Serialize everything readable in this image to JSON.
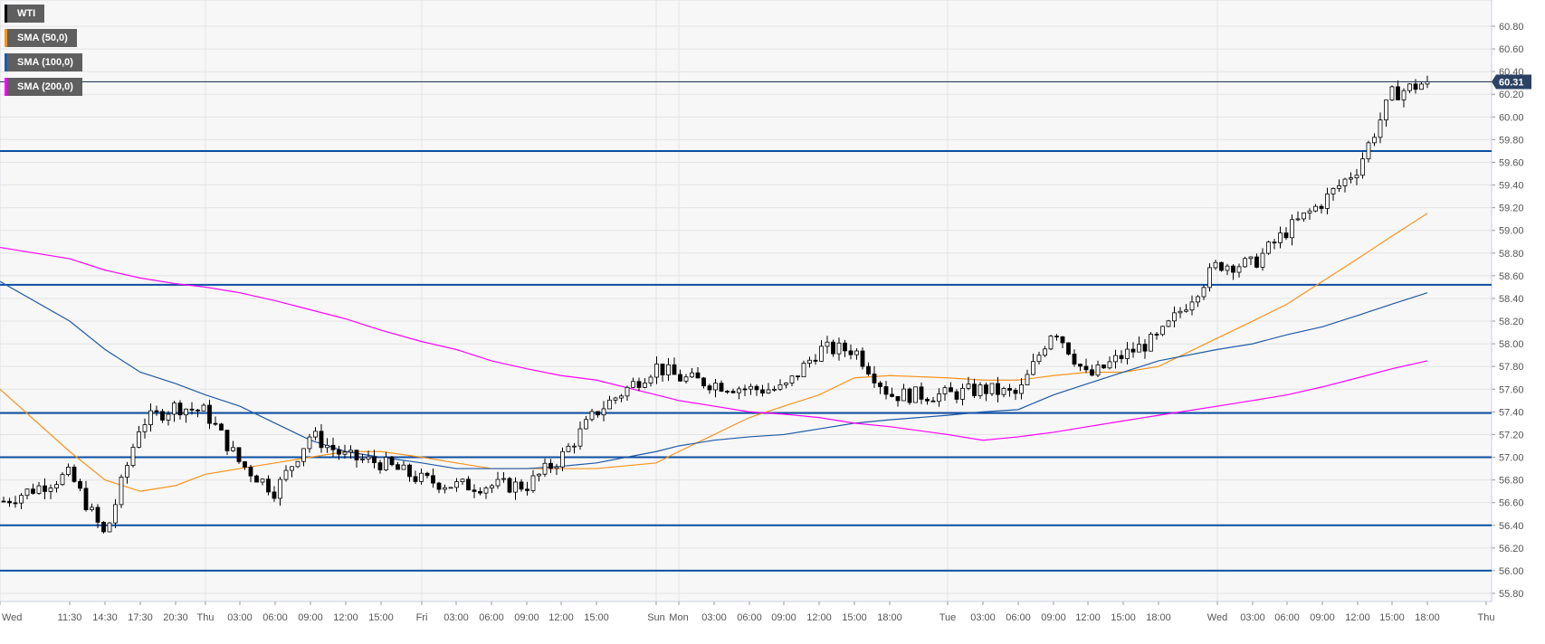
{
  "legend": [
    {
      "label": "WTI",
      "color": "#000000"
    },
    {
      "label": "SMA (50,0)",
      "color": "#f7931e"
    },
    {
      "label": "SMA (100,0)",
      "color": "#1f5aa6"
    },
    {
      "label": "SMA (200,0)",
      "color": "#ff00ff"
    }
  ],
  "chart_data": {
    "type": "candlestick",
    "instrument": "WTI",
    "last_price": "60.31",
    "ylim": [
      55.8,
      60.8
    ],
    "y_ticks": [
      "55.80",
      "56.00",
      "56.20",
      "56.40",
      "56.60",
      "56.80",
      "57.00",
      "57.20",
      "57.40",
      "57.60",
      "57.80",
      "58.00",
      "58.20",
      "58.40",
      "58.60",
      "58.80",
      "59.00",
      "59.20",
      "59.40",
      "59.60",
      "59.80",
      "60.00",
      "60.20",
      "60.40",
      "60.60",
      "60.80"
    ],
    "x_ticks": [
      "Wed",
      "11:30",
      "14:30",
      "17:30",
      "20:30",
      "Thu",
      "03:00",
      "06:00",
      "09:00",
      "12:00",
      "15:00",
      "Fri",
      "03:00",
      "06:00",
      "09:00",
      "12:00",
      "15:00",
      "Sun",
      "Mon",
      "03:00",
      "06:00",
      "09:00",
      "12:00",
      "15:00",
      "18:00",
      "Tue",
      "03:00",
      "06:00",
      "09:00",
      "12:00",
      "15:00",
      "18:00",
      "Wed",
      "03:00",
      "06:00",
      "09:00",
      "12:00",
      "15:00",
      "18:00",
      "Thu"
    ],
    "grid": true,
    "horizontal_levels": [
      59.7,
      58.52,
      57.39,
      57.0,
      56.4,
      56.0
    ],
    "level_color": "#0b4ea2",
    "series": [
      {
        "name": "WTI",
        "kind": "close",
        "values": [
          56.6,
          56.85,
          56.3,
          57.3,
          57.45,
          57.4,
          56.95,
          56.7,
          57.2,
          57.0,
          56.95,
          56.8,
          56.75,
          56.75,
          56.75,
          57.0,
          57.4,
          57.8,
          57.7,
          57.65,
          57.6,
          57.6,
          57.95,
          57.95,
          57.55,
          57.55,
          57.6,
          57.55,
          58.15,
          57.7,
          57.9,
          58.05,
          58.7,
          58.7,
          59.0,
          59.25,
          59.55,
          60.2,
          60.31
        ]
      },
      {
        "name": "SMA (50,0)",
        "color": "#f7931e",
        "values": [
          57.6,
          57.05,
          56.8,
          56.7,
          56.75,
          56.85,
          56.9,
          56.95,
          57.0,
          57.05,
          57.05,
          57.0,
          56.95,
          56.9,
          56.9,
          56.9,
          56.9,
          56.95,
          57.05,
          57.2,
          57.35,
          57.45,
          57.55,
          57.7,
          57.72,
          57.7,
          57.68,
          57.68,
          57.72,
          57.75,
          57.75,
          57.8,
          58.05,
          58.2,
          58.35,
          58.55,
          58.75,
          58.95,
          59.15
        ]
      },
      {
        "name": "SMA (100,0)",
        "color": "#1f5aa6",
        "values": [
          58.55,
          58.2,
          57.95,
          57.75,
          57.65,
          57.55,
          57.45,
          57.3,
          57.15,
          57.05,
          57.0,
          56.95,
          56.9,
          56.9,
          56.9,
          56.92,
          56.95,
          57.05,
          57.1,
          57.15,
          57.18,
          57.2,
          57.25,
          57.3,
          57.33,
          57.37,
          57.4,
          57.42,
          57.55,
          57.65,
          57.75,
          57.85,
          57.95,
          58.0,
          58.08,
          58.15,
          58.25,
          58.35,
          58.45
        ]
      },
      {
        "name": "SMA (200,0)",
        "color": "#ff00ff",
        "values": [
          58.85,
          58.75,
          58.65,
          58.58,
          58.53,
          58.5,
          58.45,
          58.38,
          58.3,
          58.22,
          58.12,
          58.02,
          57.95,
          57.85,
          57.78,
          57.72,
          57.68,
          57.55,
          57.5,
          57.45,
          57.4,
          57.38,
          57.35,
          57.3,
          57.27,
          57.2,
          57.15,
          57.18,
          57.22,
          57.27,
          57.32,
          57.37,
          57.45,
          57.5,
          57.55,
          57.62,
          57.7,
          57.78,
          57.85
        ]
      }
    ]
  }
}
